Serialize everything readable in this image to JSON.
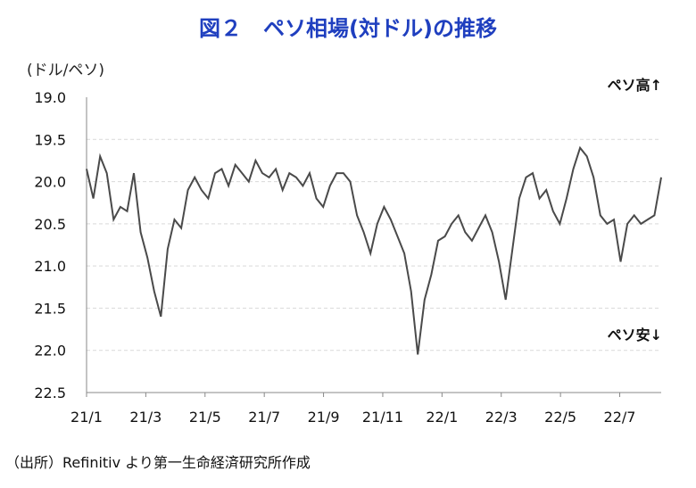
{
  "title": "図２　ペソ相場(対ドル)の推移",
  "unit_label": "(ドル/ペソ)",
  "source": "（出所）Refinitiv より第一生命経済研究所作成",
  "colors": {
    "title": "#1f3fbf",
    "line": "#4a4a4a",
    "grid": "#d9d9d9"
  },
  "chart_data": {
    "type": "line",
    "title": "図２　ペソ相場(対ドル)の推移",
    "ylabel": "(ドル/ペソ)",
    "ylim": [
      19.0,
      22.5
    ],
    "y_inverted": true,
    "yticks": [
      "19.0",
      "19.5",
      "20.0",
      "20.5",
      "21.0",
      "21.5",
      "22.0",
      "22.5"
    ],
    "xticks": [
      "21/1",
      "21/3",
      "21/5",
      "21/7",
      "21/9",
      "21/11",
      "22/1",
      "22/3",
      "22/5",
      "22/7"
    ],
    "grid": "horizontal dashed",
    "annotations": {
      "top": "ペソ高↑",
      "bottom": "ペソ安↓"
    },
    "series": [
      {
        "x": [
          "2021-01-01",
          "2021-01-08",
          "2021-01-15",
          "2021-01-22",
          "2021-01-29",
          "2021-02-05",
          "2021-02-12",
          "2021-02-19",
          "2021-02-26",
          "2021-03-05",
          "2021-03-12",
          "2021-03-19",
          "2021-03-26",
          "2021-04-02",
          "2021-04-09",
          "2021-04-16",
          "2021-04-23",
          "2021-04-30",
          "2021-05-07",
          "2021-05-14",
          "2021-05-21",
          "2021-05-28",
          "2021-06-04",
          "2021-06-11",
          "2021-06-18",
          "2021-06-25",
          "2021-07-02",
          "2021-07-09",
          "2021-07-16",
          "2021-07-23",
          "2021-07-30",
          "2021-08-06",
          "2021-08-13",
          "2021-08-20",
          "2021-08-27",
          "2021-09-03",
          "2021-09-10",
          "2021-09-17",
          "2021-09-24",
          "2021-10-01",
          "2021-10-08",
          "2021-10-15",
          "2021-10-22",
          "2021-10-29",
          "2021-11-05",
          "2021-11-12",
          "2021-11-19",
          "2021-11-26",
          "2021-12-03",
          "2021-12-10",
          "2021-12-17",
          "2021-12-24",
          "2021-12-31",
          "2022-01-07",
          "2022-01-14",
          "2022-01-21",
          "2022-01-28",
          "2022-02-04",
          "2022-02-11",
          "2022-02-18",
          "2022-02-25",
          "2022-03-04",
          "2022-03-11",
          "2022-03-18",
          "2022-03-25",
          "2022-04-01",
          "2022-04-08",
          "2022-04-15",
          "2022-04-22",
          "2022-04-29",
          "2022-05-06",
          "2022-05-13",
          "2022-05-20",
          "2022-05-27",
          "2022-06-03",
          "2022-06-10",
          "2022-06-17",
          "2022-06-24",
          "2022-07-01",
          "2022-07-08",
          "2022-07-15",
          "2022-07-22",
          "2022-07-29",
          "2022-08-05",
          "2022-08-12",
          "2022-08-19"
        ],
        "values": [
          19.85,
          20.2,
          19.7,
          19.9,
          20.45,
          20.3,
          20.35,
          19.9,
          20.6,
          20.9,
          21.3,
          21.6,
          20.8,
          20.45,
          20.55,
          20.1,
          19.95,
          20.1,
          20.2,
          19.9,
          19.85,
          20.05,
          19.8,
          19.9,
          20.0,
          19.75,
          19.9,
          19.95,
          19.85,
          20.1,
          19.9,
          19.95,
          20.05,
          19.9,
          20.2,
          20.3,
          20.05,
          19.9,
          19.9,
          20.0,
          20.4,
          20.6,
          20.85,
          20.5,
          20.3,
          20.45,
          20.65,
          20.85,
          21.3,
          22.05,
          21.4,
          21.1,
          20.7,
          20.65,
          20.5,
          20.4,
          20.6,
          20.7,
          20.55,
          20.4,
          20.6,
          20.95,
          21.4,
          20.8,
          20.2,
          19.95,
          19.9,
          20.2,
          20.1,
          20.35,
          20.5,
          20.2,
          19.85,
          19.6,
          19.7,
          19.95,
          20.4,
          20.5,
          20.45,
          20.95,
          20.5,
          20.4,
          20.5,
          20.45,
          20.4,
          19.95
        ]
      }
    ]
  }
}
